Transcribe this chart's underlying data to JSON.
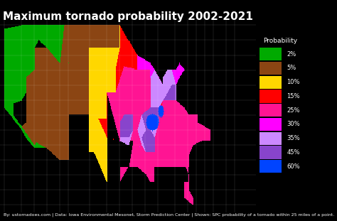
{
  "title": "Maximum tornado probability 2002-2021",
  "title_color": "white",
  "title_fontsize": 11,
  "background_color": "#000000",
  "legend_title": "Probability",
  "legend_items": [
    {
      "label": "2%",
      "color": "#00AA00"
    },
    {
      "label": "5%",
      "color": "#8B4513"
    },
    {
      "label": "10%",
      "color": "#FFD700"
    },
    {
      "label": "15%",
      "color": "#FF0000"
    },
    {
      "label": "25%",
      "color": "#FF1493"
    },
    {
      "label": "30%",
      "color": "#FF00FF"
    },
    {
      "label": "35%",
      "color": "#CC88FF"
    },
    {
      "label": "45%",
      "color": "#8844CC"
    },
    {
      "label": "60%",
      "color": "#0044FF"
    }
  ],
  "subtitle": "By: ustornadoes.com | Data: Iowa Environmental Mesonet, Storm Prediction Center | Shown: SPC probability of a tornado within 25 miles of a point.",
  "subtitle_fontsize": 4.5,
  "subtitle_color": "white",
  "map_xlim": [
    -125,
    -65
  ],
  "map_ylim": [
    24,
    50
  ]
}
